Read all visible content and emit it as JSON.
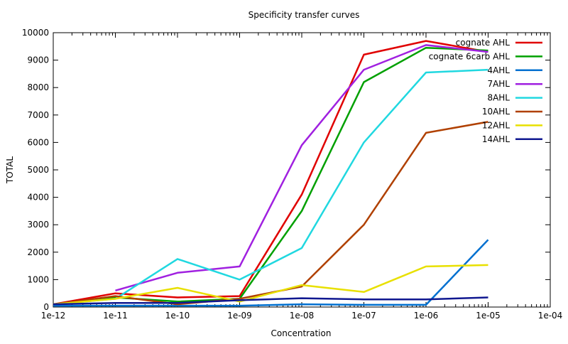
{
  "chart_data": {
    "type": "line",
    "title": "Specificity transfer curves",
    "xlabel": "Concentration",
    "ylabel": "TOTAL",
    "x_scale": "log",
    "xlim": [
      1e-12,
      0.0001
    ],
    "ylim": [
      0,
      10000
    ],
    "x_ticks": [
      "1e-12",
      "1e-11",
      "1e-10",
      "1e-09",
      "1e-08",
      "1e-07",
      "1e-06",
      "1e-05",
      "1e-04"
    ],
    "y_ticks": [
      "0",
      "1000",
      "2000",
      "3000",
      "4000",
      "5000",
      "6000",
      "7000",
      "8000",
      "9000",
      "10000"
    ],
    "grid": false,
    "legend_position": "top-right",
    "x": [
      1e-12,
      1e-11,
      1e-10,
      1e-09,
      1e-08,
      1e-07,
      1e-06,
      1e-05
    ],
    "series": [
      {
        "name": "cognate AHL",
        "color": "#e00000",
        "values": [
          100,
          500,
          350,
          400,
          4100,
          9200,
          9700,
          9300
        ]
      },
      {
        "name": "cognate 6carb AHL",
        "color": "#00a000",
        "values": [
          100,
          350,
          200,
          300,
          3500,
          8200,
          9450,
          9350
        ]
      },
      {
        "name": "4AHL",
        "color": "#0070d0",
        "values": [
          50,
          50,
          50,
          50,
          100,
          80,
          80,
          2450
        ]
      },
      {
        "name": "7AHL",
        "color": "#a020e0",
        "values": [
          null,
          600,
          1250,
          1480,
          5900,
          8650,
          9550,
          9300
        ]
      },
      {
        "name": "8AHL",
        "color": "#20d8e0",
        "values": [
          100,
          300,
          1750,
          1000,
          2150,
          6000,
          8550,
          8650
        ]
      },
      {
        "name": "10AHL",
        "color": "#b04000",
        "values": [
          100,
          400,
          100,
          300,
          750,
          3000,
          6350,
          6750
        ]
      },
      {
        "name": "12AHL",
        "color": "#e8e000",
        "values": [
          100,
          300,
          700,
          200,
          800,
          550,
          1480,
          1530
        ]
      },
      {
        "name": "14AHL",
        "color": "#101890",
        "values": [
          100,
          150,
          150,
          250,
          320,
          280,
          280,
          350
        ]
      }
    ]
  }
}
